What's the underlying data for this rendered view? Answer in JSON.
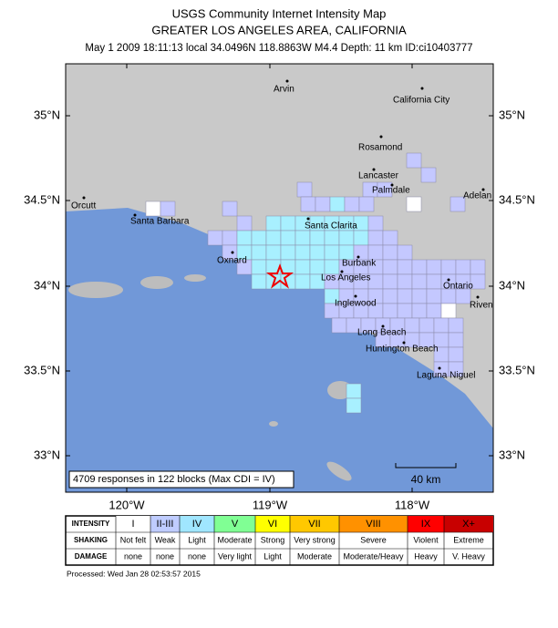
{
  "header": {
    "title": "USGS Community Internet Intensity Map",
    "subtitle": "GREATER LOS ANGELES AREA, CALIFORNIA",
    "event": "May 1 2009 18:11:13 local 34.0496N 118.8863W M4.4 Depth: 11 km ID:ci10403777"
  },
  "map": {
    "lat_labels": [
      "35°N",
      "34.5°N",
      "34°N",
      "33.5°N",
      "33°N"
    ],
    "lon_labels": [
      "120°W",
      "119°W",
      "118°W"
    ],
    "cities": [
      "Arvin",
      "California City",
      "Rosamond",
      "Lancaster",
      "Palmdale",
      "Adelan",
      "Orcutt",
      "Santa Barbara",
      "Santa Clarita",
      "Oxnard",
      "Burbank",
      "Los Angeles",
      "Ontario",
      "Riven",
      "Inglewood",
      "Long Beach",
      "Huntington Beach",
      "Laguna Niguel"
    ],
    "responses": "4709 responses in 122 blocks (Max CDI = IV)",
    "scale": "40 km"
  },
  "legend": {
    "row_labels": [
      "INTENSITY",
      "SHAKING",
      "DAMAGE"
    ],
    "columns": [
      {
        "intensity": "I",
        "shaking": "Not felt",
        "damage": "none",
        "color": "#ffffff"
      },
      {
        "intensity": "II-III",
        "shaking": "Weak",
        "damage": "none",
        "color": "#bfccff"
      },
      {
        "intensity": "IV",
        "shaking": "Light",
        "damage": "none",
        "color": "#a0e6ff"
      },
      {
        "intensity": "V",
        "shaking": "Moderate",
        "damage": "Very light",
        "color": "#80ff94"
      },
      {
        "intensity": "VI",
        "shaking": "Strong",
        "damage": "Light",
        "color": "#ffff00"
      },
      {
        "intensity": "VII",
        "shaking": "Very strong",
        "damage": "Moderate",
        "color": "#ffc800"
      },
      {
        "intensity": "VIII",
        "shaking": "Severe",
        "damage": "Moderate/Heavy",
        "color": "#ff9100"
      },
      {
        "intensity": "IX",
        "shaking": "Violent",
        "damage": "Heavy",
        "color": "#ff0000"
      },
      {
        "intensity": "X+",
        "shaking": "Extreme",
        "damage": "V. Heavy",
        "color": "#c80000"
      }
    ]
  },
  "footer": "Processed: Wed Jan 28 02:53:57 2015"
}
